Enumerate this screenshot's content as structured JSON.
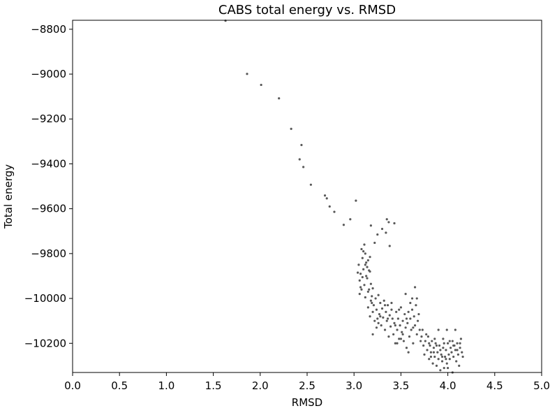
{
  "chart_data": {
    "type": "scatter",
    "title": "CABS total energy vs. RMSD",
    "xlabel": "RMSD",
    "ylabel": "Total energy",
    "xlim": [
      0.0,
      5.0
    ],
    "ylim": [
      -10330,
      -8760
    ],
    "xticks": [
      "0.0",
      "0.5",
      "1.0",
      "1.5",
      "2.0",
      "2.5",
      "3.0",
      "3.5",
      "4.0",
      "4.5",
      "5.0"
    ],
    "xtick_values": [
      0.0,
      0.5,
      1.0,
      1.5,
      2.0,
      2.5,
      3.0,
      3.5,
      4.0,
      4.5,
      5.0
    ],
    "yticks": [
      "−8800",
      "−9000",
      "−9200",
      "−9400",
      "−9600",
      "−9800",
      "−10000",
      "−10200"
    ],
    "ytick_values": [
      -8800,
      -9000,
      -9200,
      -9400,
      -9600,
      -9800,
      -10000,
      -10200
    ],
    "grid": false,
    "legend": "none",
    "marker_color": "#595959",
    "series": [
      {
        "points": [
          [
            1.63,
            -8762
          ],
          [
            1.86,
            -8999
          ],
          [
            2.01,
            -9048
          ],
          [
            2.2,
            -9108
          ],
          [
            2.33,
            -9244
          ],
          [
            2.42,
            -9380
          ],
          [
            2.44,
            -9316
          ],
          [
            2.46,
            -9414
          ],
          [
            2.54,
            -9493
          ],
          [
            2.69,
            -9541
          ],
          [
            2.71,
            -9554
          ],
          [
            2.74,
            -9590
          ],
          [
            2.79,
            -9614
          ],
          [
            2.89,
            -9672
          ],
          [
            2.96,
            -9647
          ],
          [
            3.02,
            -9564
          ],
          [
            3.18,
            -9675
          ],
          [
            3.22,
            -9752
          ],
          [
            3.25,
            -9715
          ],
          [
            3.3,
            -9690
          ],
          [
            3.34,
            -9707
          ],
          [
            3.35,
            -9647
          ],
          [
            3.37,
            -9660
          ],
          [
            3.38,
            -9766
          ],
          [
            3.43,
            -9665
          ],
          [
            3.05,
            -9850
          ],
          [
            3.06,
            -9920
          ],
          [
            3.07,
            -9890
          ],
          [
            3.08,
            -9780
          ],
          [
            3.09,
            -9820
          ],
          [
            3.1,
            -9870
          ],
          [
            3.11,
            -9940
          ],
          [
            3.12,
            -9800
          ],
          [
            3.13,
            -9900
          ],
          [
            3.14,
            -9860
          ],
          [
            3.15,
            -9830
          ],
          [
            3.16,
            -9960
          ],
          [
            3.17,
            -9880
          ],
          [
            3.08,
            -9960
          ],
          [
            3.1,
            -9790
          ],
          [
            3.12,
            -9850
          ],
          [
            3.14,
            -9910
          ],
          [
            3.06,
            -9980
          ],
          [
            3.11,
            -9760
          ],
          [
            3.13,
            -9840
          ],
          [
            3.15,
            -9970
          ],
          [
            3.09,
            -9905
          ],
          [
            3.17,
            -9815
          ],
          [
            3.18,
            -9935
          ],
          [
            3.04,
            -9885
          ],
          [
            3.07,
            -9950
          ],
          [
            3.16,
            -9875
          ],
          [
            3.12,
            -9995
          ],
          [
            3.19,
            -9990
          ],
          [
            3.2,
            -9955
          ],
          [
            3.15,
            -10040
          ],
          [
            3.17,
            -10080
          ],
          [
            3.18,
            -10010
          ],
          [
            3.2,
            -10060
          ],
          [
            3.21,
            -10030
          ],
          [
            3.22,
            -10100
          ],
          [
            3.23,
            -10000
          ],
          [
            3.24,
            -10050
          ],
          [
            3.25,
            -10090
          ],
          [
            3.26,
            -9985
          ],
          [
            3.27,
            -10070
          ],
          [
            3.28,
            -10020
          ],
          [
            3.29,
            -10120
          ],
          [
            3.3,
            -10045
          ],
          [
            3.31,
            -10085
          ],
          [
            3.32,
            -10010
          ],
          [
            3.33,
            -10140
          ],
          [
            3.34,
            -10060
          ],
          [
            3.35,
            -10100
          ],
          [
            3.36,
            -10030
          ],
          [
            3.37,
            -10170
          ],
          [
            3.38,
            -10075
          ],
          [
            3.39,
            -10125
          ],
          [
            3.4,
            -10050
          ],
          [
            3.41,
            -10090
          ],
          [
            3.42,
            -10160
          ],
          [
            3.43,
            -10110
          ],
          [
            3.44,
            -10200
          ],
          [
            3.45,
            -10060
          ],
          [
            3.46,
            -10140
          ],
          [
            3.47,
            -10090
          ],
          [
            3.48,
            -10180
          ],
          [
            3.49,
            -10120
          ],
          [
            3.5,
            -10040
          ],
          [
            3.51,
            -10150
          ],
          [
            3.52,
            -10100
          ],
          [
            3.53,
            -10190
          ],
          [
            3.54,
            -10070
          ],
          [
            3.55,
            -10130
          ],
          [
            3.56,
            -10220
          ],
          [
            3.57,
            -10110
          ],
          [
            3.58,
            -10060
          ],
          [
            3.59,
            -10170
          ],
          [
            3.6,
            -10090
          ],
          [
            3.61,
            -10140
          ],
          [
            3.62,
            -10050
          ],
          [
            3.63,
            -10200
          ],
          [
            3.64,
            -10080
          ],
          [
            3.65,
            -10120
          ],
          [
            3.66,
            -10030
          ],
          [
            3.67,
            -10160
          ],
          [
            3.68,
            -10100
          ],
          [
            3.69,
            -10070
          ],
          [
            3.7,
            -10140
          ],
          [
            3.2,
            -10160
          ],
          [
            3.26,
            -10110
          ],
          [
            3.19,
            -10020
          ],
          [
            3.24,
            -10130
          ],
          [
            3.36,
            -10090
          ],
          [
            3.44,
            -10120
          ],
          [
            3.52,
            -10160
          ],
          [
            3.58,
            -10240
          ],
          [
            3.48,
            -10050
          ],
          [
            3.55,
            -9980
          ],
          [
            3.62,
            -10000
          ],
          [
            3.65,
            -9950
          ],
          [
            3.67,
            -10000
          ],
          [
            3.6,
            -10020
          ],
          [
            3.4,
            -10020
          ],
          [
            3.33,
            -10030
          ],
          [
            3.28,
            -10080
          ],
          [
            3.46,
            -10200
          ],
          [
            3.5,
            -10180
          ],
          [
            3.56,
            -10090
          ],
          [
            3.63,
            -10130
          ],
          [
            3.72,
            -10170
          ],
          [
            3.74,
            -10210
          ],
          [
            3.75,
            -10250
          ],
          [
            3.76,
            -10190
          ],
          [
            3.78,
            -10230
          ],
          [
            3.79,
            -10170
          ],
          [
            3.8,
            -10270
          ],
          [
            3.81,
            -10210
          ],
          [
            3.82,
            -10240
          ],
          [
            3.83,
            -10190
          ],
          [
            3.84,
            -10290
          ],
          [
            3.85,
            -10220
          ],
          [
            3.86,
            -10260
          ],
          [
            3.87,
            -10200
          ],
          [
            3.88,
            -10300
          ],
          [
            3.89,
            -10240
          ],
          [
            3.9,
            -10270
          ],
          [
            3.91,
            -10210
          ],
          [
            3.92,
            -10320
          ],
          [
            3.93,
            -10250
          ],
          [
            3.94,
            -10280
          ],
          [
            3.95,
            -10220
          ],
          [
            3.96,
            -10310
          ],
          [
            3.97,
            -10260
          ],
          [
            3.98,
            -10230
          ],
          [
            3.99,
            -10290
          ],
          [
            4.0,
            -10200
          ],
          [
            4.01,
            -10250
          ],
          [
            4.02,
            -10270
          ],
          [
            4.03,
            -10220
          ],
          [
            4.04,
            -10240
          ],
          [
            4.05,
            -10190
          ],
          [
            4.06,
            -10260
          ],
          [
            4.07,
            -10210
          ],
          [
            4.08,
            -10230
          ],
          [
            4.09,
            -10280
          ],
          [
            4.1,
            -10200
          ],
          [
            4.11,
            -10250
          ],
          [
            4.12,
            -10300
          ],
          [
            4.13,
            -10220
          ],
          [
            4.14,
            -10180
          ],
          [
            4.15,
            -10240
          ],
          [
            4.16,
            -10260
          ],
          [
            3.9,
            -10140
          ],
          [
            3.95,
            -10180
          ],
          [
            3.99,
            -10140
          ],
          [
            4.08,
            -10140
          ],
          [
            3.86,
            -10180
          ],
          [
            3.77,
            -10160
          ],
          [
            3.92,
            -10230
          ],
          [
            4.05,
            -10330
          ],
          [
            4.0,
            -10310
          ],
          [
            3.96,
            -10200
          ],
          [
            4.02,
            -10190
          ],
          [
            3.88,
            -10210
          ],
          [
            3.8,
            -10200
          ],
          [
            3.71,
            -10190
          ],
          [
            3.73,
            -10140
          ],
          [
            3.82,
            -10260
          ],
          [
            4.1,
            -10230
          ],
          [
            3.94,
            -10260
          ],
          [
            4.06,
            -10210
          ],
          [
            3.98,
            -10270
          ],
          [
            4.13,
            -10200
          ],
          [
            3.85,
            -10240
          ]
        ]
      }
    ]
  }
}
